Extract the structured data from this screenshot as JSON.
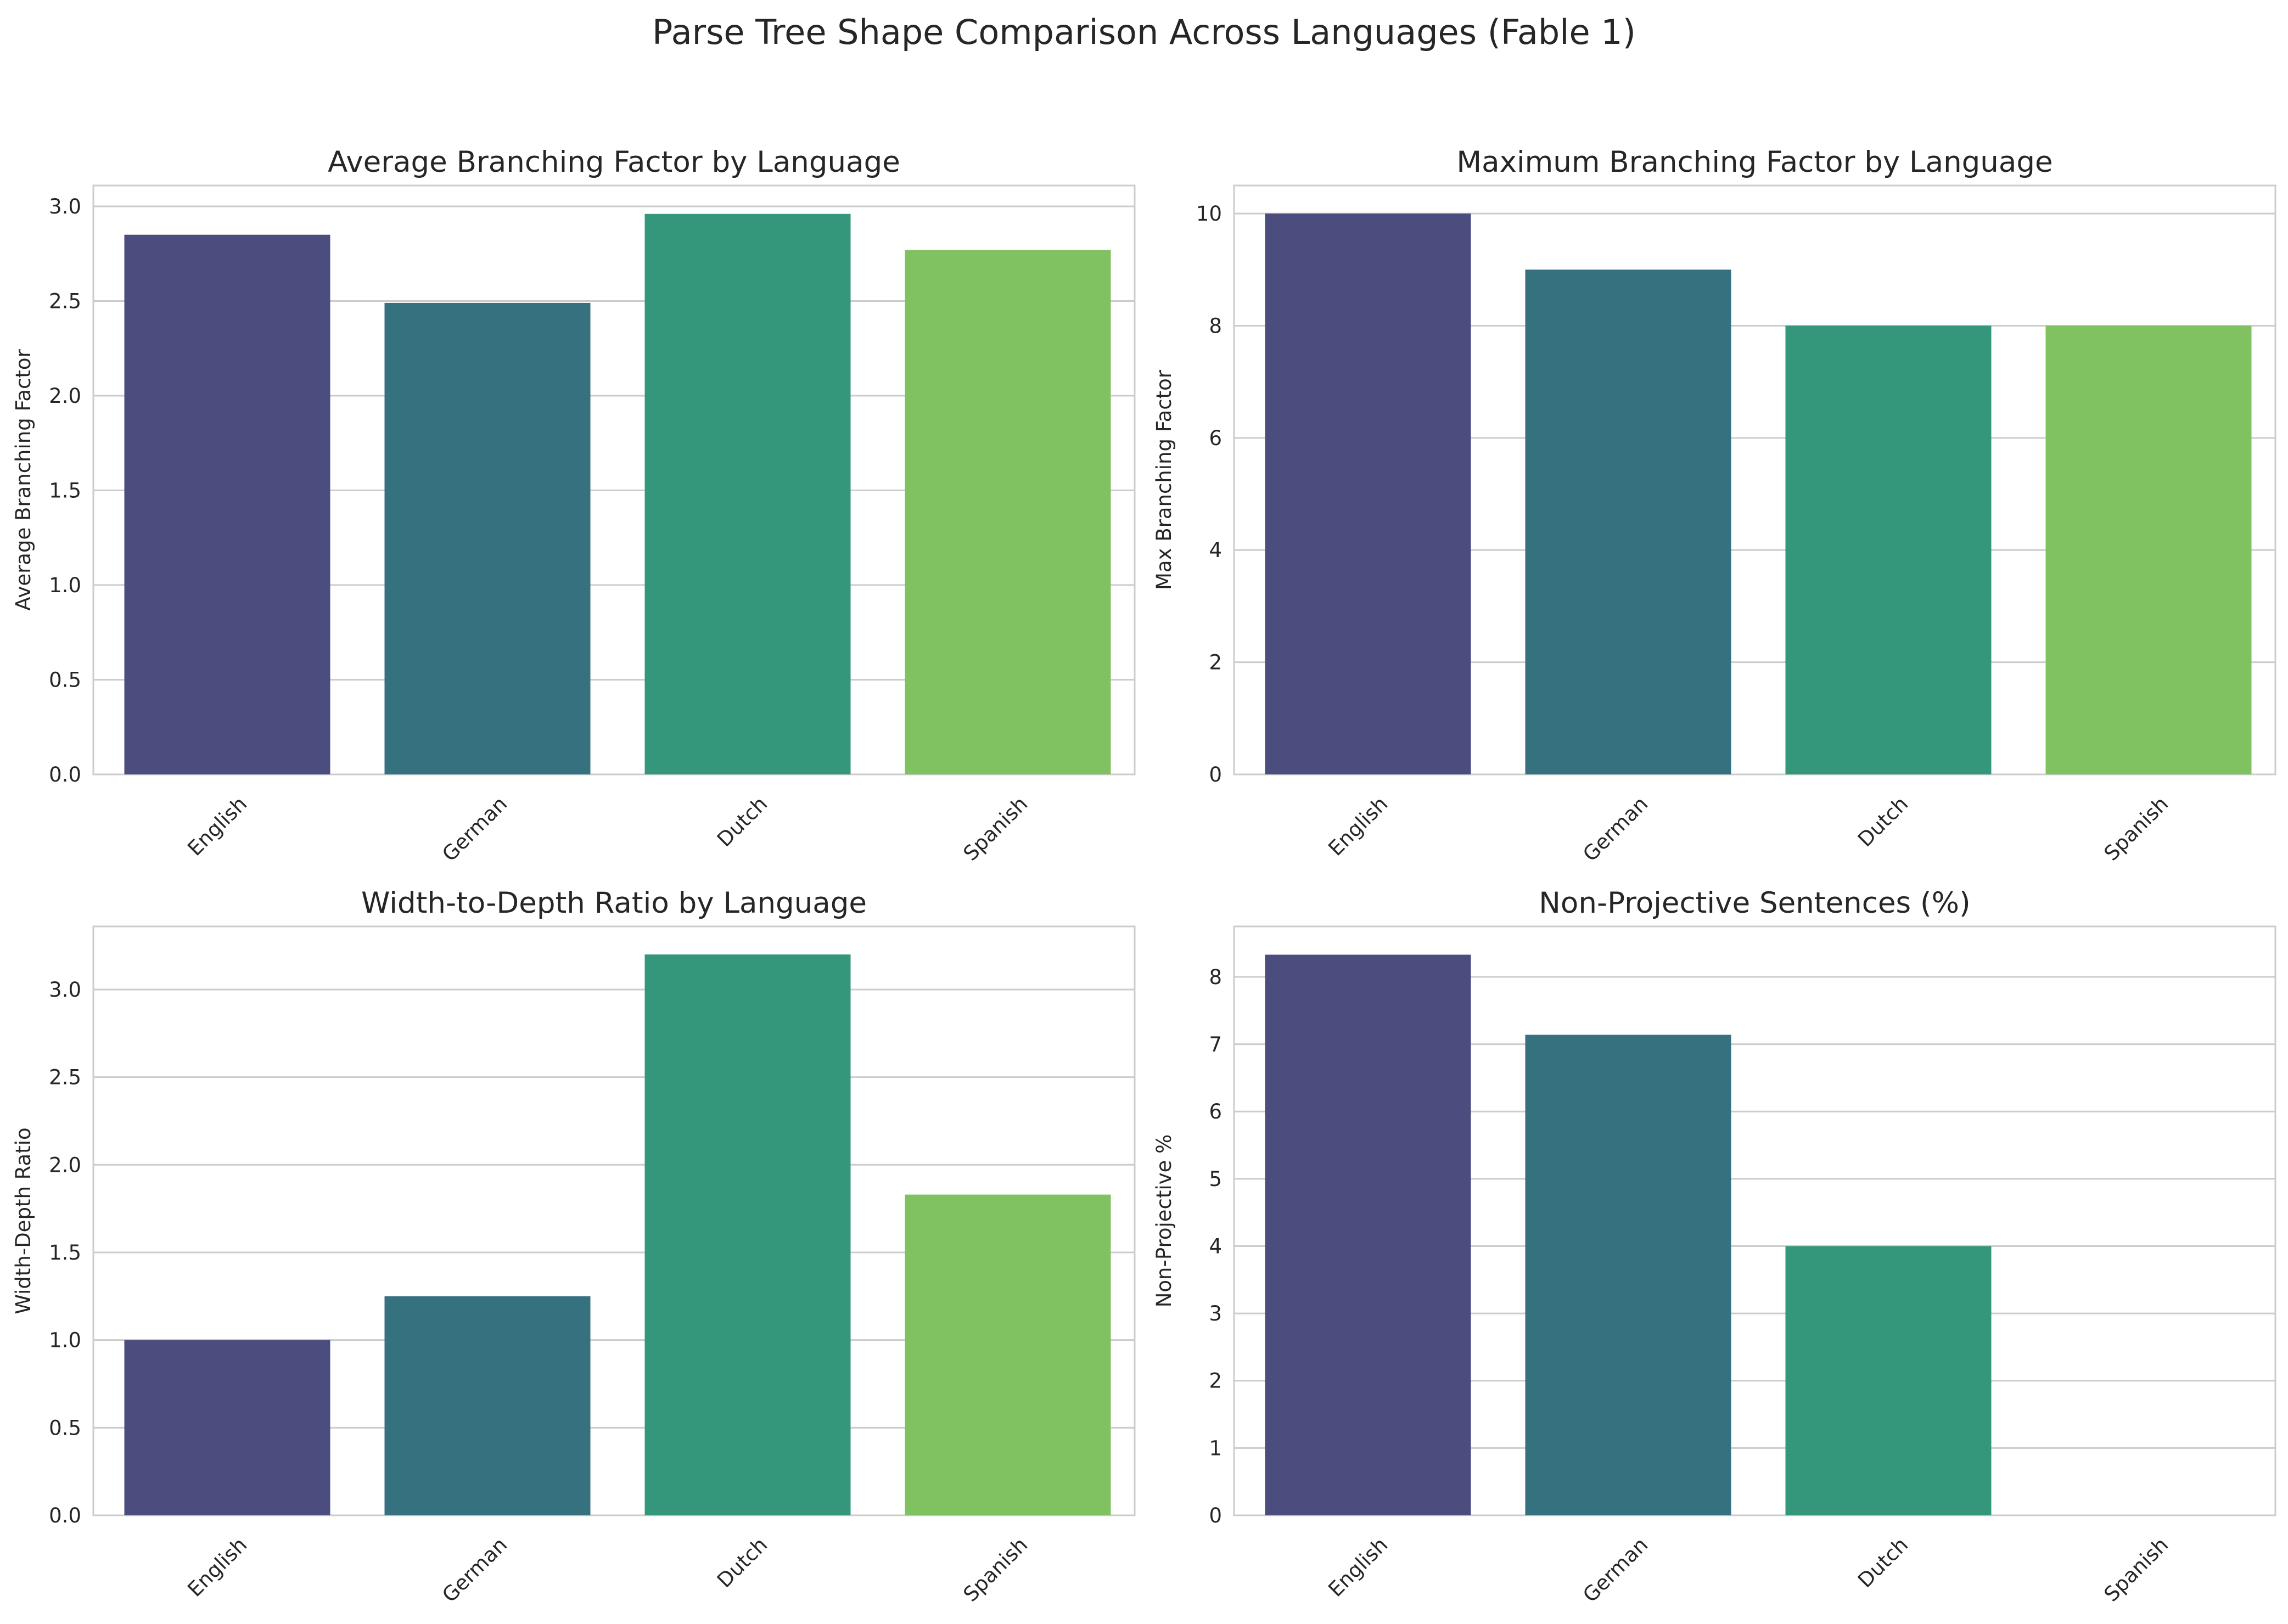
{
  "figure": {
    "title": "Parse Tree Shape Comparison Across Languages (Fable 1)"
  },
  "colors": [
    "#482878",
    "#26828e",
    "#35b779",
    "#addc30"
  ],
  "bar_colors_rendered": [
    "#4a4d7e",
    "#36717f",
    "#34967b",
    "#80c262"
  ],
  "chart_data": [
    {
      "type": "bar",
      "title": "Average Branching Factor by Language",
      "xlabel": "",
      "ylabel": "Average Branching Factor",
      "categories": [
        "English",
        "German",
        "Dutch",
        "Spanish"
      ],
      "values": [
        2.85,
        2.49,
        2.96,
        2.77
      ],
      "ylim": [
        0,
        3.11
      ],
      "yticks": [
        0.0,
        0.5,
        1.0,
        1.5,
        2.0,
        2.5,
        3.0
      ],
      "ytick_labels": [
        "0.0",
        "0.5",
        "1.0",
        "1.5",
        "2.0",
        "2.5",
        "3.0"
      ],
      "grid": true
    },
    {
      "type": "bar",
      "title": "Maximum Branching Factor by Language",
      "xlabel": "",
      "ylabel": "Max Branching Factor",
      "categories": [
        "English",
        "German",
        "Dutch",
        "Spanish"
      ],
      "values": [
        10,
        9,
        8,
        8
      ],
      "ylim": [
        0,
        10.5
      ],
      "yticks": [
        0,
        2,
        4,
        6,
        8,
        10
      ],
      "ytick_labels": [
        "0",
        "2",
        "4",
        "6",
        "8",
        "10"
      ],
      "grid": true
    },
    {
      "type": "bar",
      "title": "Width-to-Depth Ratio by Language",
      "xlabel": "",
      "ylabel": "Width-Depth Ratio",
      "categories": [
        "English",
        "German",
        "Dutch",
        "Spanish"
      ],
      "values": [
        1.0,
        1.25,
        3.2,
        1.83
      ],
      "ylim": [
        0,
        3.36
      ],
      "yticks": [
        0.0,
        0.5,
        1.0,
        1.5,
        2.0,
        2.5,
        3.0
      ],
      "ytick_labels": [
        "0.0",
        "0.5",
        "1.0",
        "1.5",
        "2.0",
        "2.5",
        "3.0"
      ],
      "grid": true
    },
    {
      "type": "bar",
      "title": "Non-Projective Sentences (%)",
      "xlabel": "",
      "ylabel": "Non-Projective %",
      "categories": [
        "English",
        "German",
        "Dutch",
        "Spanish"
      ],
      "values": [
        8.33,
        7.14,
        4.0,
        0
      ],
      "ylim": [
        0,
        8.75
      ],
      "yticks": [
        0,
        1,
        2,
        3,
        4,
        5,
        6,
        7,
        8
      ],
      "ytick_labels": [
        "0",
        "1",
        "2",
        "3",
        "4",
        "5",
        "6",
        "7",
        "8"
      ],
      "grid": true
    }
  ]
}
